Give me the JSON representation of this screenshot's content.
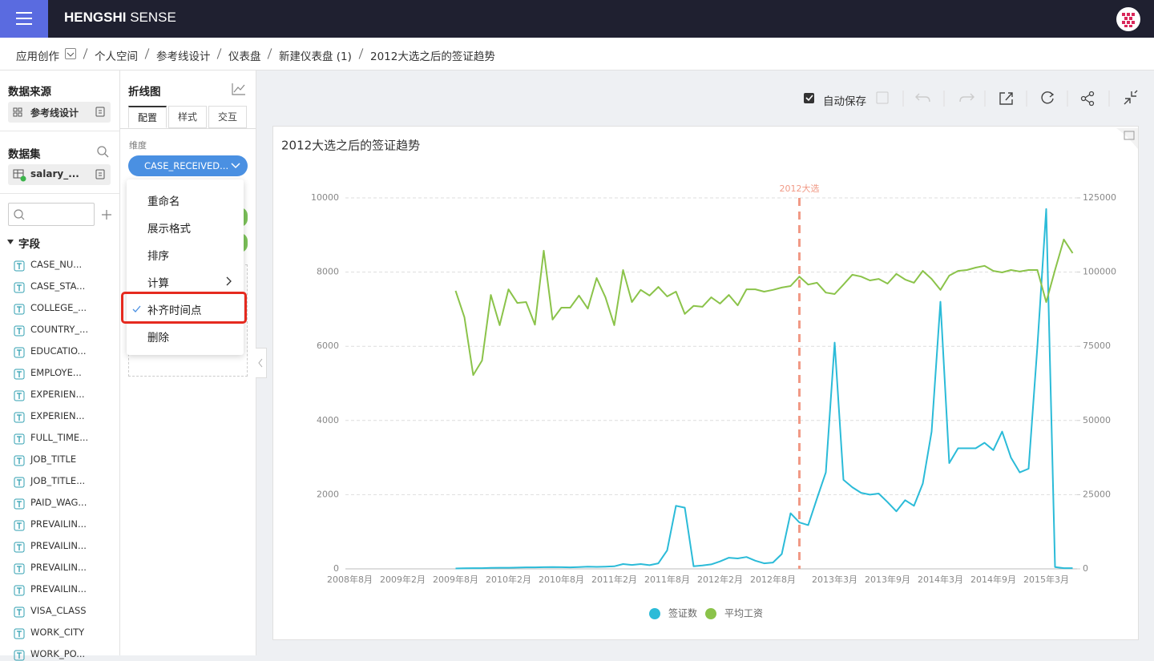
{
  "header": {
    "brand_bold": "HENGSHI",
    "brand": "SENSE"
  },
  "breadcrumb": [
    "应用创作",
    "个人空间",
    "参考线设计",
    "仪表盘",
    "新建仪表盘 (1)",
    "2012大选之后的签证趋势"
  ],
  "left_panel": {
    "source_title": "数据来源",
    "source": "参考线设计",
    "dataset_title": "数据集",
    "dataset": "salary_...",
    "fields_title": "字段",
    "fields": [
      "CASE_NU...",
      "CASE_STA...",
      "COLLEGE_...",
      "COUNTRY_...",
      "EDUCATIO...",
      "EMPLOYE...",
      "EXPERIEN...",
      "EXPERIEN...",
      "FULL_TIME...",
      "JOB_TITLE",
      "JOB_TITLE...",
      "PAID_WAG...",
      "PREVAILIN...",
      "PREVAILIN...",
      "PREVAILIN...",
      "PREVAILIN...",
      "VISA_CLASS",
      "WORK_CITY",
      "WORK_PO..."
    ]
  },
  "config_panel": {
    "title": "折线图",
    "tabs": [
      "配置",
      "样式",
      "交互"
    ],
    "dimension_title": "维度",
    "dimension": "CASE_RECEIVED..."
  },
  "context_menu": {
    "items": [
      "重命名",
      "展示格式",
      "排序",
      "计算",
      "补齐时间点",
      "删除"
    ]
  },
  "toolbar": {
    "autosave": "自动保存"
  },
  "chart_data": {
    "type": "line",
    "title": "2012大选之后的签证趋势",
    "categories": [
      "2008年8月",
      null,
      null,
      null,
      null,
      null,
      "2009年2月",
      null,
      null,
      null,
      null,
      null,
      "2009年8月",
      null,
      null,
      null,
      null,
      null,
      "2010年2月",
      null,
      null,
      null,
      null,
      null,
      "2010年8月",
      null,
      null,
      null,
      null,
      null,
      "2011年2月",
      null,
      null,
      null,
      null,
      null,
      "2011年8月",
      null,
      null,
      null,
      null,
      null,
      "2012年2月",
      null,
      null,
      null,
      null,
      null,
      "2012年8月",
      null,
      null,
      null,
      null,
      null,
      null,
      "2013年3月",
      null,
      null,
      null,
      null,
      null,
      "2013年9月",
      null,
      null,
      null,
      null,
      null,
      "2014年3月",
      null,
      null,
      null,
      null,
      null,
      "2014年9月",
      null,
      null,
      null,
      null,
      null,
      "2015年3月",
      null,
      null,
      null
    ],
    "series": [
      {
        "name": "签证数",
        "color": "#2bbbd8",
        "axis": "y",
        "values": [
          null,
          null,
          null,
          null,
          null,
          null,
          null,
          null,
          null,
          null,
          null,
          null,
          10,
          15,
          20,
          20,
          25,
          30,
          30,
          35,
          40,
          40,
          45,
          50,
          45,
          40,
          50,
          60,
          55,
          60,
          70,
          130,
          105,
          130,
          100,
          150,
          500,
          1700,
          1650,
          70,
          90,
          120,
          200,
          300,
          280,
          320,
          220,
          150,
          170,
          400,
          1500,
          1250,
          1180,
          1900,
          2600,
          6100,
          2400,
          2200,
          2050,
          2000,
          2030,
          1800,
          1550,
          1850,
          1700,
          2300,
          3700,
          7200,
          2850,
          3250,
          3250,
          3250,
          3400,
          3200,
          3700,
          3000,
          2600,
          2700,
          6000,
          9700,
          50,
          20,
          20
        ]
      },
      {
        "name": "平均工资",
        "color": "#8bc34a",
        "axis": "y2",
        "values": [
          null,
          null,
          null,
          null,
          null,
          null,
          null,
          null,
          null,
          null,
          null,
          null,
          93700,
          84800,
          65300,
          70200,
          92300,
          82100,
          94200,
          89600,
          89900,
          82300,
          107200,
          84000,
          88000,
          88000,
          92100,
          87700,
          98000,
          91500,
          82100,
          100700,
          89900,
          94000,
          92100,
          95000,
          91800,
          93400,
          85900,
          88600,
          88300,
          91500,
          89400,
          92300,
          88800,
          94200,
          94200,
          93400,
          94000,
          94800,
          95300,
          98500,
          95800,
          96400,
          93100,
          92600,
          95800,
          99100,
          98500,
          97200,
          97700,
          96100,
          99400,
          97500,
          96400,
          100400,
          97700,
          94000,
          98800,
          100400,
          100700,
          101500,
          102100,
          100400,
          99900,
          100700,
          100200,
          100700,
          100700,
          89900,
          100700,
          111000,
          106400
        ]
      }
    ],
    "ylim": [
      0,
      10000
    ],
    "yticks": [
      0,
      2000,
      4000,
      6000,
      8000,
      10000
    ],
    "y2lim": [
      0,
      125000
    ],
    "y2ticks": [
      0,
      25000,
      50000,
      75000,
      100000,
      125000
    ],
    "grid": true,
    "legend": "bottom",
    "reference_line": {
      "label": "2012大选",
      "at": 51,
      "color": "#f19a86"
    }
  }
}
